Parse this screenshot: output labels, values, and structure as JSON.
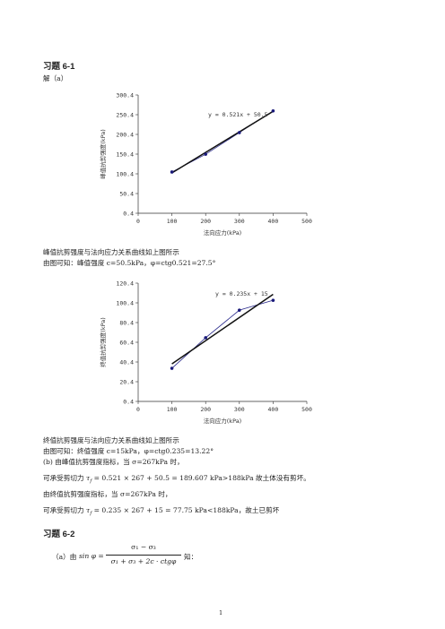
{
  "heading1": "习题 6-1",
  "solution_a": "解（a）",
  "charts_text": {
    "chart1_caption": "峰值抗剪强度与法向应力关系曲线如上图所示",
    "chart1_result": "由图可知：峰值强度 c=50.5kPa，φ=ctg0.521=27.5°",
    "chart2_caption": "终值抗剪强度与法向应力关系曲线如上图所示",
    "chart2_result": "由图可知：终值强度 c=15kPa，φ=ctg0.235=13.22°"
  },
  "chart_data": [
    {
      "type": "scatter",
      "x": [
        100,
        200,
        300,
        400
      ],
      "y": [
        105,
        150,
        205,
        260
      ],
      "trendline": {
        "slope": 0.521,
        "intercept": 50.5,
        "label": "y = 0.521x + 50.5"
      },
      "xlabel": "法向应力(kPa)",
      "ylabel": "峰值抗剪强度(kPa)",
      "xlim": [
        0,
        500
      ],
      "ylim": [
        0.4,
        300.4
      ],
      "xticks": [
        "0",
        "100",
        "200",
        "300",
        "400",
        "500"
      ],
      "yticks": [
        "0.4",
        "50.4",
        "100.4",
        "150.4",
        "200.4",
        "250.4",
        "300.4"
      ],
      "grid": false
    },
    {
      "type": "scatter",
      "x": [
        100,
        200,
        300,
        400
      ],
      "y": [
        34,
        65,
        93,
        103
      ],
      "trendline": {
        "slope": 0.235,
        "intercept": 15,
        "label": "y = 0.235x + 15"
      },
      "xlabel": "法向应力(kPa)",
      "ylabel": "终值抗剪强度(kPa)",
      "xlim": [
        0,
        500
      ],
      "ylim": [
        0.4,
        120.4
      ],
      "xticks": [
        "0",
        "100",
        "200",
        "300",
        "400",
        "500"
      ],
      "yticks": [
        "0.4",
        "20.4",
        "40.4",
        "60.4",
        "80.4",
        "100.4",
        "120.4"
      ],
      "grid": false
    }
  ],
  "analysis": {
    "b_line": "(b) 由峰值抗剪强度指标，当 σ=267kPa 时，",
    "shear1_prefix": "可承受剪切力",
    "shear1_expr": "= 0.521 × 267 + 50.5 = 189.607",
    "shear1_suffix": "kPa>188kPa 故土体没有剪坏。",
    "final_line": "由终值抗剪强度指标，当 σ=267kPa 时，",
    "shear2_prefix": "可承受剪切力",
    "shear2_expr": "= 0.235 × 267 + 15 = 77.75",
    "shear2_suffix": "kPa<188kPa，故土已剪坏"
  },
  "heading2": "习题 6-2",
  "formula": {
    "prefix": "（a）由",
    "lhs": "sin φ =",
    "numerator": "σ₁ − σ₃",
    "denominator": "σ₁ + σ₃ + 2c · ctgφ",
    "suffix": "知："
  },
  "page_number": "1"
}
